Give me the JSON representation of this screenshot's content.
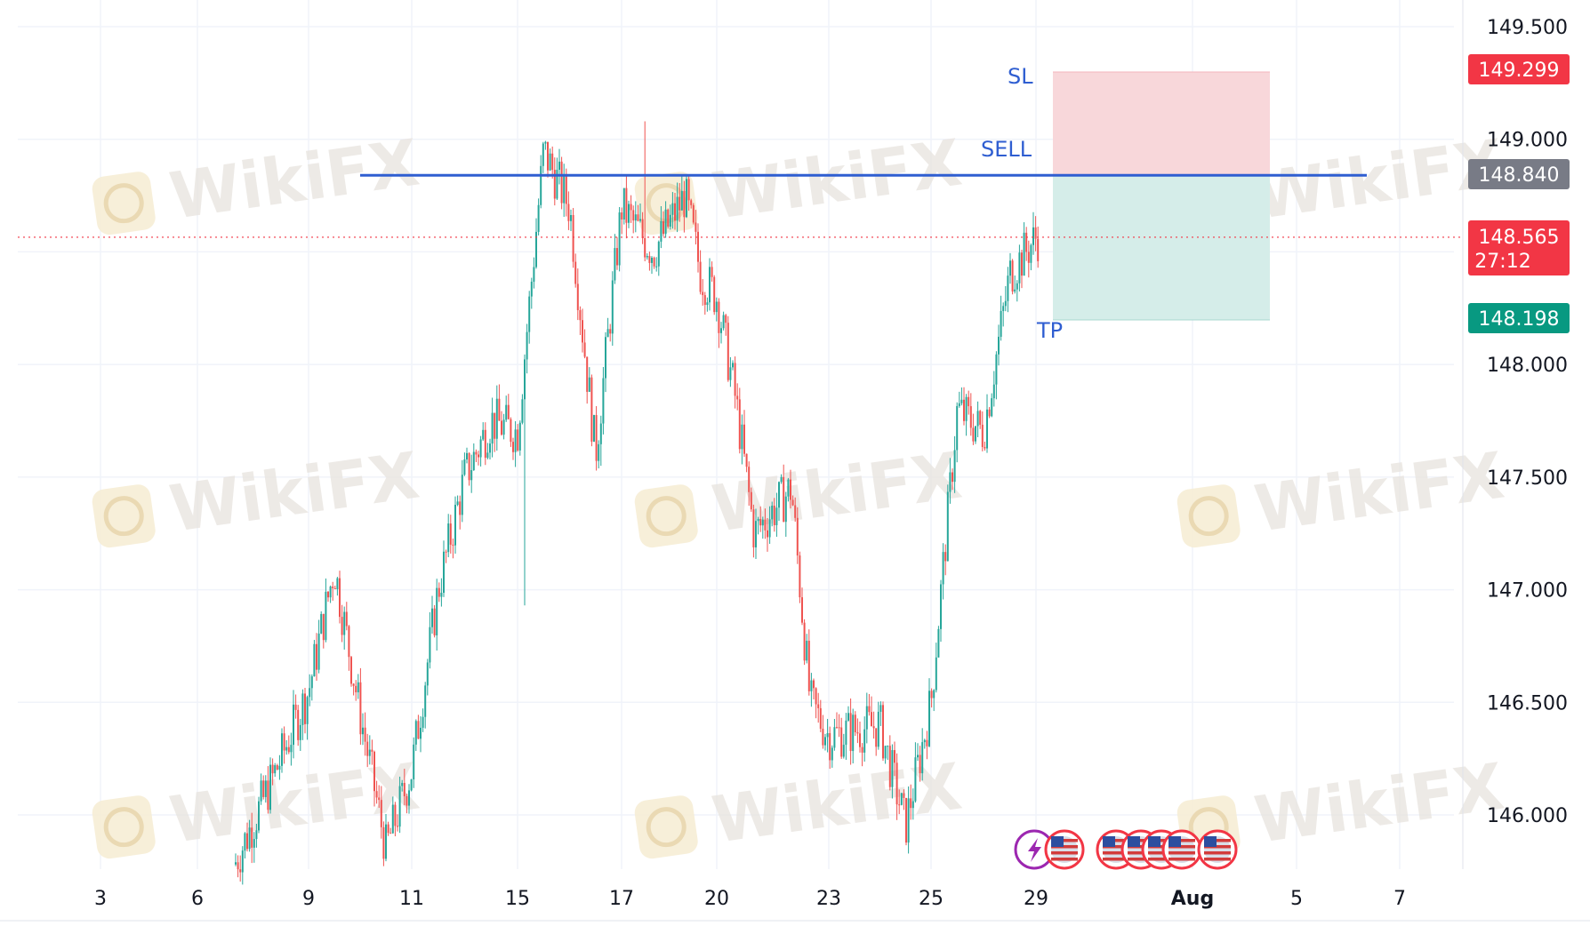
{
  "watermark": {
    "text": "WikiFX"
  },
  "colors": {
    "up": "#26a69a",
    "down": "#ef5350",
    "sell_line": "#2f5ed1",
    "stop_zone": "#f8d7da",
    "target_zone": "#d5ede9",
    "sl_tag": "#f23645",
    "entry_tag": "#787b86",
    "price_tag": "#f23645",
    "tp_tag": "#089981",
    "grid": "#f0f3fa"
  },
  "trade": {
    "sl_label": "SL",
    "entry_label": "SELL",
    "tp_label": "TP",
    "sl_price": "149.299",
    "entry_price": "148.840",
    "tp_price": "148.198",
    "last_price": "148.565",
    "countdown": "27:12"
  },
  "events": {
    "icons": [
      "lightning-icon",
      "us-flag-icon",
      "us-flag-icon",
      "us-flag-icon",
      "us-flag-icon",
      "us-flag-icon",
      "us-flag-icon"
    ]
  },
  "chart_data": {
    "type": "candlestick",
    "title": "",
    "xlabel": "",
    "ylabel": "",
    "ylim": [
      145.75,
      149.6
    ],
    "y_ticks": [
      "149.500",
      "149.000",
      "148.000",
      "147.500",
      "147.000",
      "146.500",
      "146.000"
    ],
    "x_ticks": [
      "3",
      "6",
      "9",
      "11",
      "15",
      "17",
      "20",
      "23",
      "25",
      "29",
      "Aug",
      "5",
      "7"
    ],
    "grid": true,
    "last_price": 148.565,
    "levels": {
      "stop_loss": 149.299,
      "sell_entry": 148.84,
      "take_profit": 148.198
    },
    "price_path": [
      {
        "x": "Jul 7",
        "close": 145.78
      },
      {
        "x": "Jul 8",
        "close": 146.15
      },
      {
        "x": "Jul 9",
        "close": 146.55
      },
      {
        "x": "Jul 9",
        "close": 147.1
      },
      {
        "x": "Jul 10",
        "close": 146.45
      },
      {
        "x": "Jul 10",
        "close": 145.85
      },
      {
        "x": "Jul 11",
        "close": 146.2
      },
      {
        "x": "Jul 12",
        "close": 147.0
      },
      {
        "x": "Jul 13",
        "close": 147.5
      },
      {
        "x": "Jul 14",
        "close": 147.75
      },
      {
        "x": "Jul 15",
        "close": 147.7
      },
      {
        "x": "Jul 15",
        "close": 148.95
      },
      {
        "x": "Jul 16",
        "close": 148.7
      },
      {
        "x": "Jul 16",
        "close": 147.6
      },
      {
        "x": "Jul 17",
        "close": 148.7
      },
      {
        "x": "Jul 18",
        "close": 148.5
      },
      {
        "x": "Jul 19",
        "close": 148.75
      },
      {
        "x": "Jul 19",
        "close": 148.4
      },
      {
        "x": "Jul 20",
        "close": 148.3
      },
      {
        "x": "Jul 20",
        "close": 147.85
      },
      {
        "x": "Jul 21",
        "close": 147.25
      },
      {
        "x": "Jul 22",
        "close": 147.45
      },
      {
        "x": "Jul 22",
        "close": 146.5
      },
      {
        "x": "Jul 23",
        "close": 146.35
      },
      {
        "x": "Jul 24",
        "close": 146.4
      },
      {
        "x": "Jul 24",
        "close": 145.95
      },
      {
        "x": "Jul 25",
        "close": 146.5
      },
      {
        "x": "Jul 25",
        "close": 147.15
      },
      {
        "x": "Jul 26",
        "close": 147.8
      },
      {
        "x": "Jul 27",
        "close": 147.7
      },
      {
        "x": "Jul 28",
        "close": 148.4
      },
      {
        "x": "Jul 29",
        "close": 148.565
      }
    ]
  }
}
